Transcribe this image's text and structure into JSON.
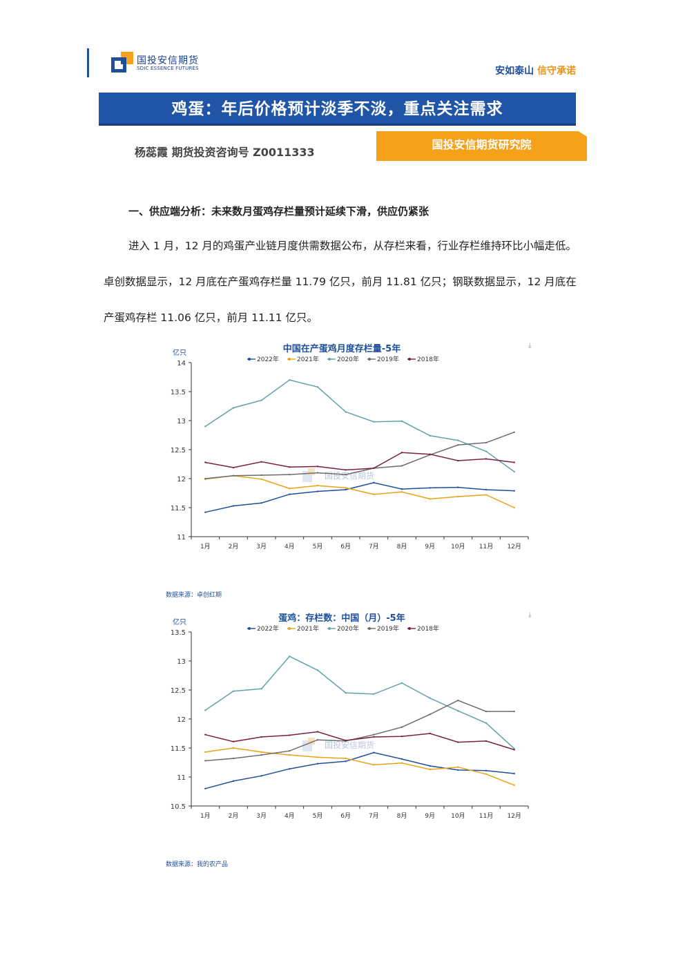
{
  "header": {
    "logo_cn": "国投安信期货",
    "logo_en": "SDIC ESSENCE FUTURES",
    "slogan_a": "安如泰山",
    "slogan_b": "信守承诺"
  },
  "title": "鸡蛋：年后价格预计淡季不淡，重点关注需求",
  "author": "杨蕊霞  期货投资咨询号 Z0011333",
  "institute": "国投安信期货研究院",
  "section_title": "一、供应端分析：未来数月蛋鸡存栏量预计延续下滑，供应仍紧张",
  "paragraph": "进入 1 月，12 月的鸡蛋产业链月度供需数据公布，从存栏来看，行业存栏维持环比小幅走低。卓创数据显示，12 月底在产蛋鸡存栏量 11.79 亿只，前月 11.81 亿只；钢联数据显示，12 月底在产蛋鸡存栏 11.06 亿只，前月 11.11 亿只。",
  "watermark": "国投安信期货",
  "chart_data": [
    {
      "type": "line",
      "title": "中国在产蛋鸡月度存栏量-5年",
      "ylabel": "亿只",
      "ylim": [
        11,
        14
      ],
      "yticks": [
        "14",
        "13.5",
        "13",
        "12.5",
        "12",
        "11.5",
        "11"
      ],
      "categories": [
        "1月",
        "2月",
        "3月",
        "4月",
        "5月",
        "6月",
        "7月",
        "8月",
        "9月",
        "10月",
        "11月",
        "12月"
      ],
      "grid": false,
      "legend_position": "top",
      "source": "数据来源：卓创红期",
      "series": [
        {
          "name": "2022年",
          "color": "#1f4e9c",
          "values": [
            11.42,
            11.53,
            11.58,
            11.73,
            11.78,
            11.81,
            11.93,
            11.82,
            11.84,
            11.85,
            11.81,
            11.79
          ]
        },
        {
          "name": "2021年",
          "color": "#e8a317",
          "values": [
            11.99,
            12.05,
            11.99,
            11.83,
            11.88,
            11.84,
            11.73,
            11.77,
            11.65,
            11.69,
            11.72,
            11.5
          ]
        },
        {
          "name": "2020年",
          "color": "#5ea3a8",
          "values": [
            12.9,
            13.22,
            13.35,
            13.7,
            13.58,
            13.15,
            12.98,
            12.99,
            12.74,
            12.66,
            12.47,
            12.12
          ]
        },
        {
          "name": "2019年",
          "color": "#6b6b6b",
          "values": [
            12.0,
            12.05,
            12.06,
            12.07,
            12.1,
            12.07,
            12.18,
            12.22,
            12.41,
            12.58,
            12.62,
            12.8
          ]
        },
        {
          "name": "2018年",
          "color": "#7a1f3d",
          "values": [
            12.28,
            12.19,
            12.29,
            12.2,
            12.21,
            12.15,
            12.18,
            12.45,
            12.42,
            12.31,
            12.34,
            12.28
          ]
        }
      ]
    },
    {
      "type": "line",
      "title": "蛋鸡：存栏数：中国（月）-5年",
      "ylabel": "亿只",
      "ylim": [
        10.5,
        13.5
      ],
      "yticks": [
        "13.5",
        "13",
        "12.5",
        "12",
        "11.5",
        "11",
        "10.5"
      ],
      "categories": [
        "1月",
        "2月",
        "3月",
        "4月",
        "5月",
        "6月",
        "7月",
        "8月",
        "9月",
        "10月",
        "11月",
        "12月"
      ],
      "grid": false,
      "legend_position": "top",
      "source": "数据来源：我的农产品",
      "series": [
        {
          "name": "2022年",
          "color": "#1f4e9c",
          "values": [
            10.8,
            10.93,
            11.02,
            11.14,
            11.23,
            11.27,
            11.42,
            11.31,
            11.19,
            11.12,
            11.11,
            11.06
          ]
        },
        {
          "name": "2021年",
          "color": "#e8a317",
          "values": [
            11.43,
            11.5,
            11.43,
            11.38,
            11.34,
            11.32,
            11.21,
            11.24,
            11.13,
            11.17,
            11.05,
            10.86
          ]
        },
        {
          "name": "2020年",
          "color": "#5ea3a8",
          "values": [
            12.15,
            12.48,
            12.52,
            13.08,
            12.84,
            12.45,
            12.43,
            12.62,
            12.36,
            12.14,
            11.93,
            11.49
          ]
        },
        {
          "name": "2019年",
          "color": "#6b6b6b",
          "values": [
            11.28,
            11.32,
            11.38,
            11.45,
            11.64,
            11.62,
            11.73,
            11.86,
            12.08,
            12.32,
            12.13,
            12.13
          ]
        },
        {
          "name": "2018年",
          "color": "#7a1f3d",
          "values": [
            11.73,
            11.61,
            11.69,
            11.72,
            11.78,
            11.63,
            11.69,
            11.7,
            11.75,
            11.6,
            11.62,
            11.47
          ]
        }
      ]
    }
  ]
}
